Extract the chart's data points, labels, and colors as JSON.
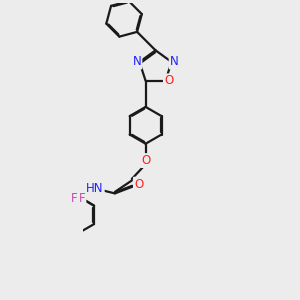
{
  "background_color": "#ececec",
  "line_color": "#1a1a1a",
  "bond_lw": 1.6,
  "dbo": 0.03,
  "atom_colors": {
    "N": "#2020ff",
    "O": "#ff2020",
    "F": "#cc44bb",
    "H": "#777777"
  },
  "fs": 8.5,
  "xlim": [
    -2.2,
    2.2
  ],
  "ylim": [
    -4.8,
    4.8
  ]
}
